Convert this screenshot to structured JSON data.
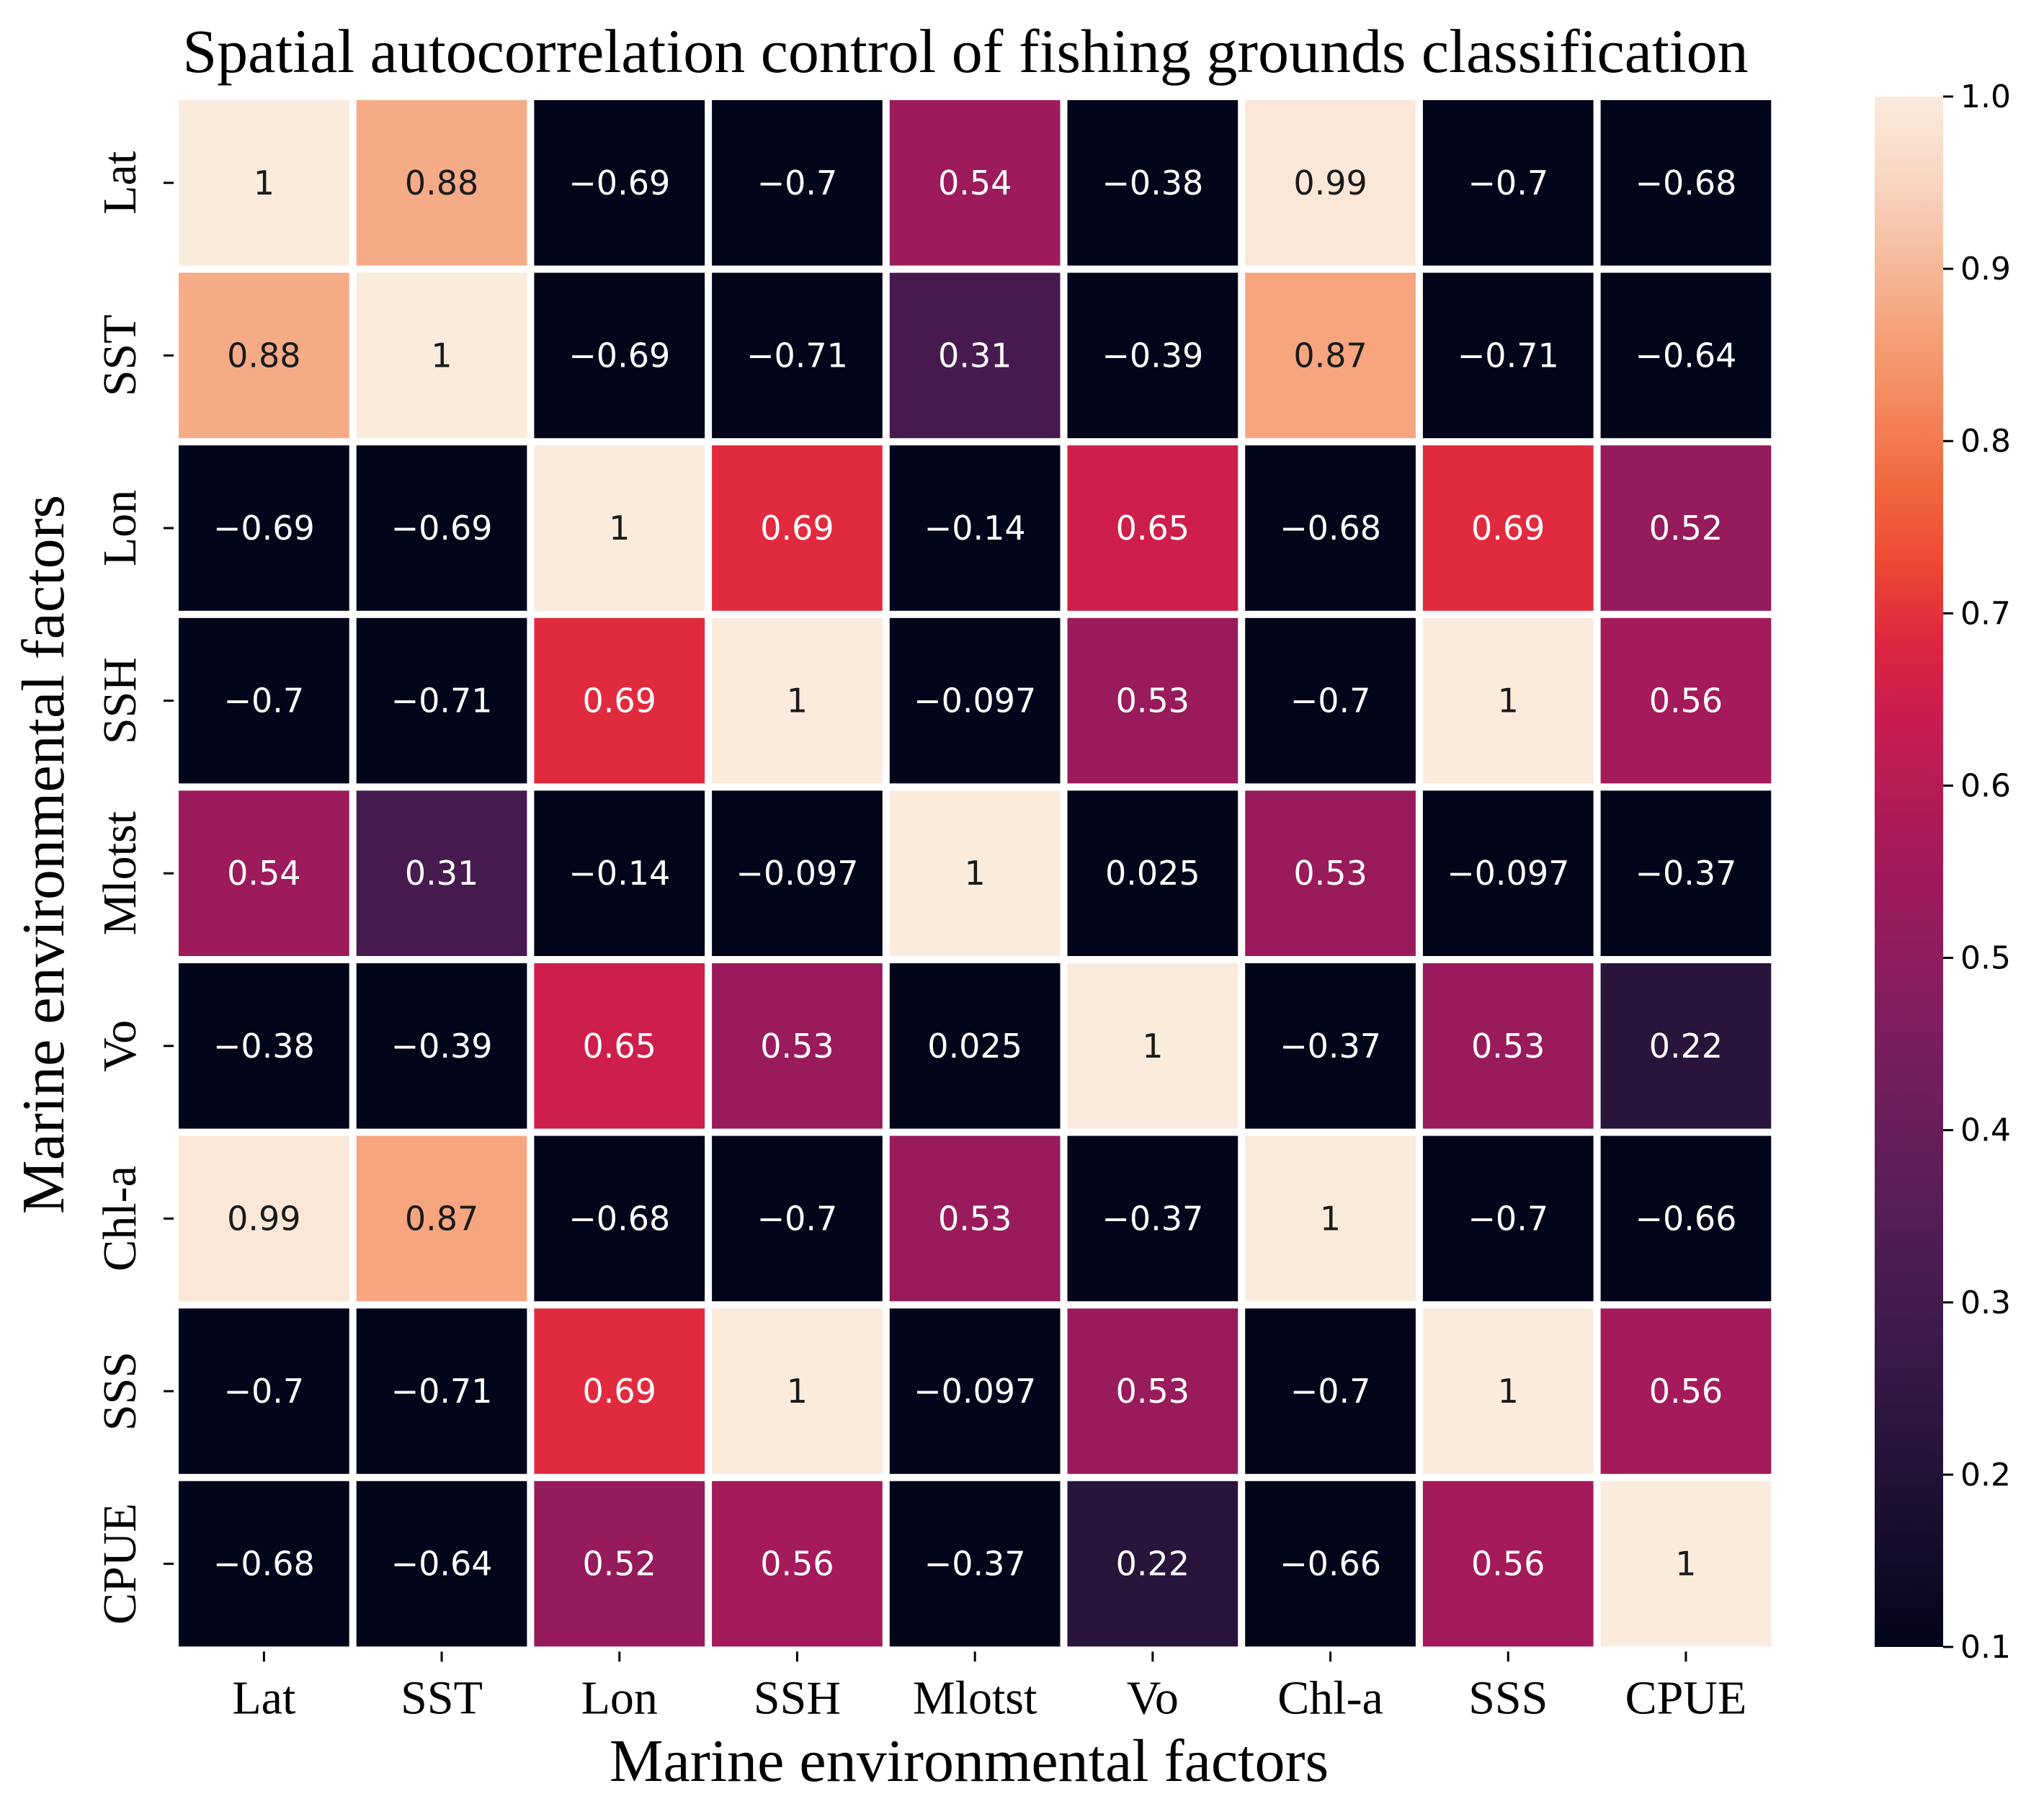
{
  "chart_data": {
    "type": "heatmap",
    "title": "Spatial autocorrelation control of fishing grounds classification",
    "xlabel": "Marine environmental factors",
    "ylabel": "Marine environmental factors",
    "x_categories": [
      "Lat",
      "SST",
      "Lon",
      "SSH",
      "Mlotst",
      "Vo",
      "Chl-a",
      "SSS",
      "CPUE"
    ],
    "y_categories": [
      "Lat",
      "SST",
      "Lon",
      "SSH",
      "Mlotst",
      "Vo",
      "Chl-a",
      "SSS",
      "CPUE"
    ],
    "values": [
      [
        1,
        0.88,
        -0.69,
        -0.7,
        0.54,
        -0.38,
        0.99,
        -0.7,
        -0.68
      ],
      [
        0.88,
        1,
        -0.69,
        -0.71,
        0.31,
        -0.39,
        0.87,
        -0.71,
        -0.64
      ],
      [
        -0.69,
        -0.69,
        1,
        0.69,
        -0.14,
        0.65,
        -0.68,
        0.69,
        0.52
      ],
      [
        -0.7,
        -0.71,
        0.69,
        1,
        -0.097,
        0.53,
        -0.7,
        1,
        0.56
      ],
      [
        0.54,
        0.31,
        -0.14,
        -0.097,
        1,
        0.025,
        0.53,
        -0.097,
        -0.37
      ],
      [
        -0.38,
        -0.39,
        0.65,
        0.53,
        0.025,
        1,
        -0.37,
        0.53,
        0.22
      ],
      [
        0.99,
        0.87,
        -0.68,
        -0.7,
        0.53,
        -0.37,
        1,
        -0.7,
        -0.66
      ],
      [
        -0.7,
        -0.71,
        0.69,
        1,
        -0.097,
        0.53,
        -0.7,
        1,
        0.56
      ],
      [
        -0.68,
        -0.64,
        0.52,
        0.56,
        -0.37,
        0.22,
        -0.66,
        0.56,
        1
      ]
    ],
    "cell_labels": [
      [
        "1",
        "0.88",
        "−0.69",
        "−0.7",
        "0.54",
        "−0.38",
        "0.99",
        "−0.7",
        "−0.68"
      ],
      [
        "0.88",
        "1",
        "−0.69",
        "−0.71",
        "0.31",
        "−0.39",
        "0.87",
        "−0.71",
        "−0.64"
      ],
      [
        "−0.69",
        "−0.69",
        "1",
        "0.69",
        "−0.14",
        "0.65",
        "−0.68",
        "0.69",
        "0.52"
      ],
      [
        "−0.7",
        "−0.71",
        "0.69",
        "1",
        "−0.097",
        "0.53",
        "−0.7",
        "1",
        "0.56"
      ],
      [
        "0.54",
        "0.31",
        "−0.14",
        "−0.097",
        "1",
        "0.025",
        "0.53",
        "−0.097",
        "−0.37"
      ],
      [
        "−0.38",
        "−0.39",
        "0.65",
        "0.53",
        "0.025",
        "1",
        "−0.37",
        "0.53",
        "0.22"
      ],
      [
        "0.99",
        "0.87",
        "−0.68",
        "−0.7",
        "0.53",
        "−0.37",
        "1",
        "−0.7",
        "−0.66"
      ],
      [
        "−0.7",
        "−0.71",
        "0.69",
        "1",
        "−0.097",
        "0.53",
        "−0.7",
        "1",
        "0.56"
      ],
      [
        "−0.68",
        "−0.64",
        "0.52",
        "0.56",
        "−0.37",
        "0.22",
        "−0.66",
        "0.56",
        "1"
      ]
    ],
    "colormap": "rocket",
    "color_range": [
      0.1,
      1.0
    ],
    "colorbar_ticks": [
      0.1,
      0.2,
      0.3,
      0.4,
      0.5,
      0.6,
      0.7,
      0.8,
      0.9,
      1.0
    ],
    "colorbar_tick_labels": [
      "0.1",
      "0.2",
      "0.3",
      "0.4",
      "0.5",
      "0.6",
      "0.7",
      "0.8",
      "0.9",
      "1.0"
    ],
    "colormap_stops": [
      {
        "v": 0.0,
        "c": "#03051a"
      },
      {
        "v": 0.1,
        "c": "#1f1133"
      },
      {
        "v": 0.2,
        "c": "#3c1a4c"
      },
      {
        "v": 0.3,
        "c": "#5c1e59"
      },
      {
        "v": 0.4,
        "c": "#7e1e5e"
      },
      {
        "v": 0.5,
        "c": "#a11a5b"
      },
      {
        "v": 0.6,
        "c": "#c91c4f"
      },
      {
        "v": 0.65,
        "c": "#e0263f"
      },
      {
        "v": 0.7,
        "c": "#ee4a33"
      },
      {
        "v": 0.75,
        "c": "#f2683f"
      },
      {
        "v": 0.8,
        "c": "#f5875b"
      },
      {
        "v": 0.85,
        "c": "#f6a27b"
      },
      {
        "v": 0.9,
        "c": "#f6bea0"
      },
      {
        "v": 0.95,
        "c": "#f9d7c3"
      },
      {
        "v": 1.0,
        "c": "#faebdd"
      }
    ],
    "grid": false,
    "legend": "colorbar-right"
  }
}
